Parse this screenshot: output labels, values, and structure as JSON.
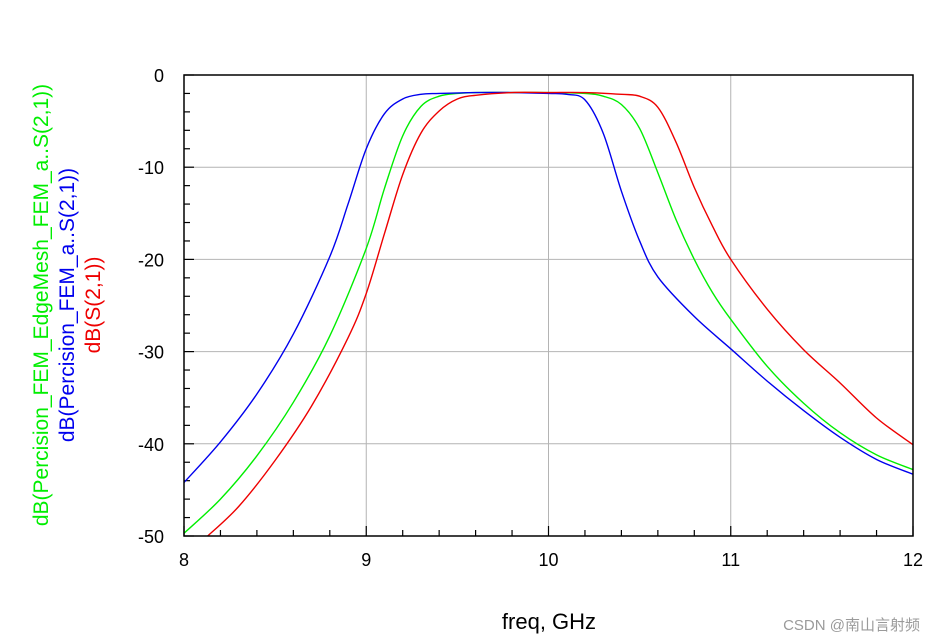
{
  "chart_data": {
    "type": "line",
    "xlabel": "freq, GHz",
    "xlim": [
      8,
      12
    ],
    "ylim": [
      -50,
      0
    ],
    "x_ticks": [
      8,
      9,
      10,
      11,
      12
    ],
    "y_ticks": [
      0,
      -10,
      -20,
      -30,
      -40,
      -50
    ],
    "x_tick_labels": [
      "8",
      "9",
      "10",
      "11",
      "12"
    ],
    "y_tick_labels": [
      "0",
      "-10",
      "-20",
      "-30",
      "-40",
      "-50"
    ],
    "grid": true,
    "series": [
      {
        "name": "dB(Percision_FEM_EdgeMesh_FEM_a..S(2,1))",
        "color": "#00ee00",
        "x": [
          8.0,
          8.2,
          8.4,
          8.6,
          8.8,
          9.0,
          9.1,
          9.2,
          9.3,
          9.4,
          9.5,
          9.6,
          9.8,
          10.0,
          10.2,
          10.3,
          10.4,
          10.5,
          10.6,
          10.7,
          10.8,
          10.9,
          11.0,
          11.2,
          11.4,
          11.6,
          11.8,
          12.0
        ],
        "y": [
          -49.7,
          -46.0,
          -41.3,
          -35.5,
          -28.3,
          -18.8,
          -12.3,
          -6.6,
          -3.4,
          -2.3,
          -2.0,
          -1.9,
          -1.9,
          -1.9,
          -2.0,
          -2.3,
          -3.2,
          -5.8,
          -10.6,
          -15.7,
          -20.0,
          -23.6,
          -26.5,
          -31.6,
          -35.6,
          -38.8,
          -41.2,
          -42.8
        ]
      },
      {
        "name": "dB(Percision_FEM_a..S(2,1))",
        "color": "#0000ee",
        "x": [
          8.0,
          8.2,
          8.4,
          8.6,
          8.8,
          8.9,
          9.0,
          9.1,
          9.2,
          9.3,
          9.4,
          9.6,
          9.8,
          10.0,
          10.1,
          10.2,
          10.3,
          10.4,
          10.5,
          10.6,
          10.8,
          11.0,
          11.2,
          11.4,
          11.6,
          11.8,
          12.0
        ],
        "y": [
          -44.2,
          -39.8,
          -34.6,
          -28.1,
          -19.7,
          -14.0,
          -8.0,
          -4.2,
          -2.6,
          -2.1,
          -2.0,
          -1.9,
          -1.9,
          -2.0,
          -2.1,
          -2.7,
          -6.3,
          -12.6,
          -18.0,
          -21.9,
          -26.2,
          -29.7,
          -33.2,
          -36.4,
          -39.3,
          -41.7,
          -43.3
        ]
      },
      {
        "name": "dB(S(2,1))",
        "color": "#ee0000",
        "x": [
          8.13,
          8.3,
          8.5,
          8.7,
          8.9,
          9.0,
          9.1,
          9.2,
          9.3,
          9.4,
          9.5,
          9.6,
          9.8,
          10.0,
          10.2,
          10.4,
          10.5,
          10.6,
          10.7,
          10.8,
          10.9,
          11.0,
          11.2,
          11.4,
          11.6,
          11.8,
          12.0
        ],
        "y": [
          -50.0,
          -46.8,
          -41.8,
          -35.9,
          -28.5,
          -23.7,
          -17.2,
          -10.8,
          -6.3,
          -3.9,
          -2.6,
          -2.2,
          -1.9,
          -1.9,
          -1.9,
          -2.1,
          -2.3,
          -3.5,
          -7.3,
          -12.2,
          -16.4,
          -20.0,
          -25.4,
          -29.8,
          -33.4,
          -37.2,
          -40.1
        ]
      }
    ]
  },
  "watermark": "CSDN @南山言射频"
}
